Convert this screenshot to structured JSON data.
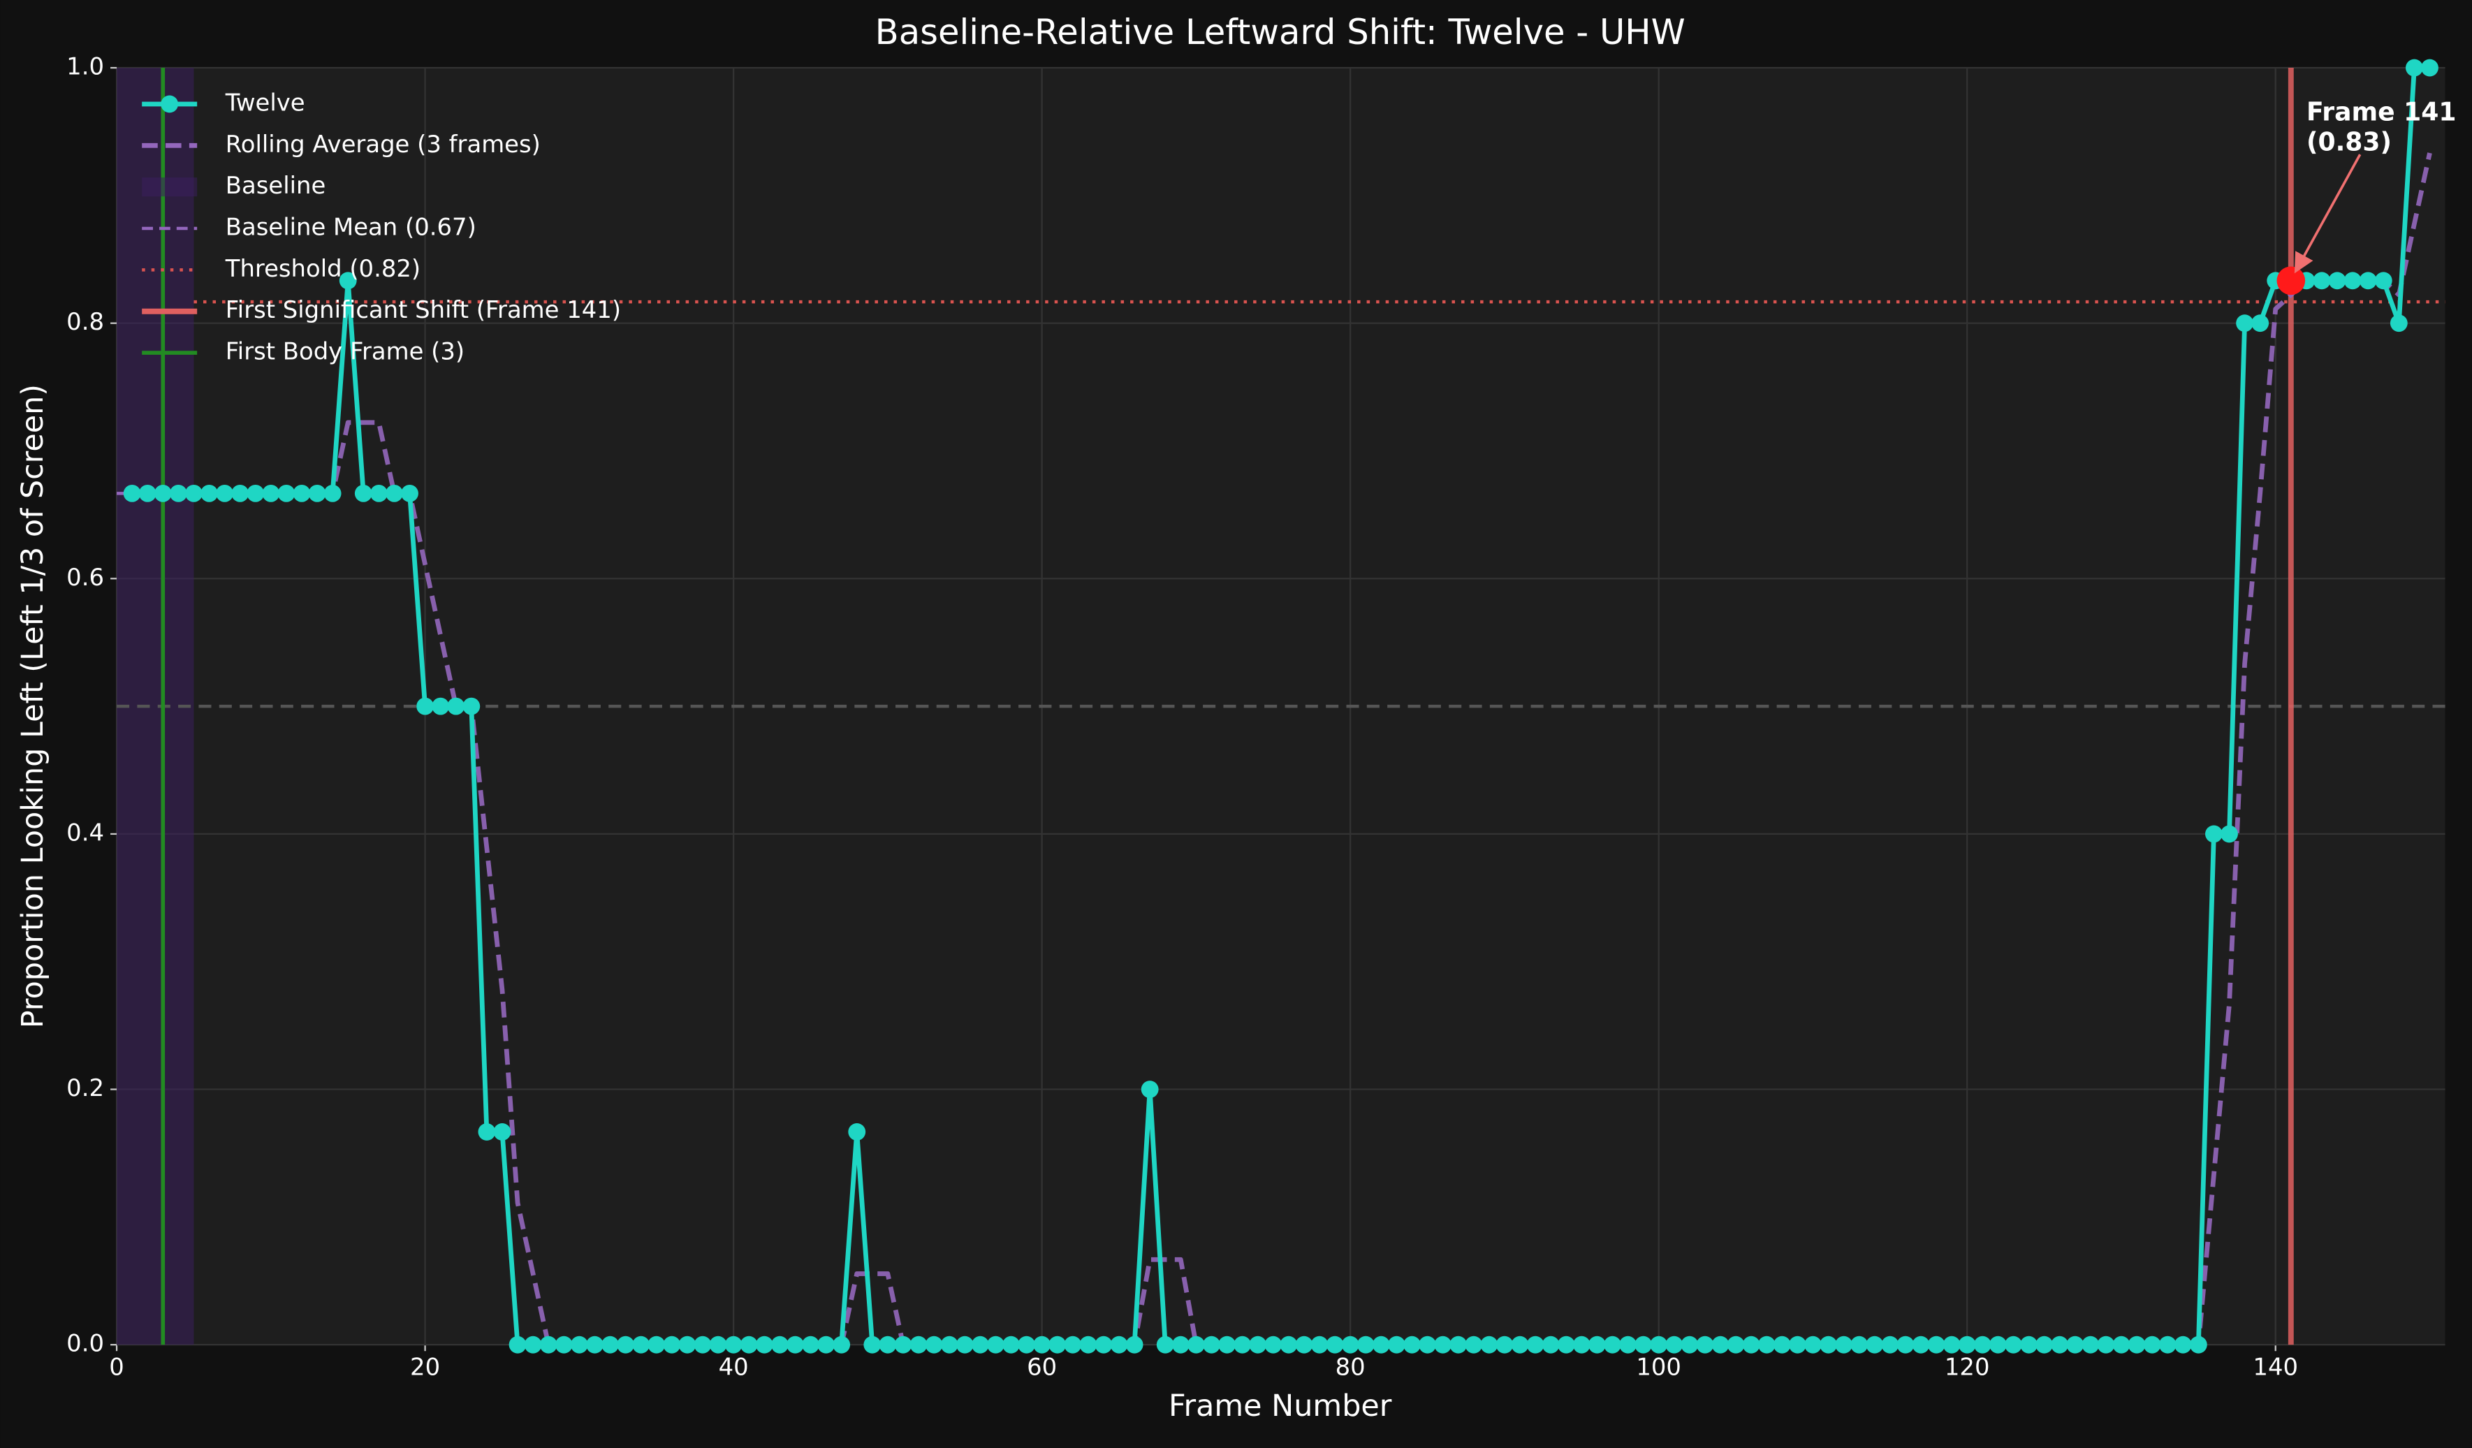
{
  "chart_data": {
    "type": "line",
    "title": "Baseline-Relative Leftward Shift: Twelve - UHW",
    "x_label": "Frame Number",
    "y_label": "Proportion Looking Left (Left 1/3 of Screen)",
    "xlim": [
      0,
      151
    ],
    "ylim": [
      0,
      1
    ],
    "xticks": [
      0,
      20,
      40,
      60,
      80,
      100,
      120,
      140
    ],
    "yticks": [
      {
        "value": 0,
        "label": "0.0"
      },
      0.2,
      0.4,
      0.6,
      0.8,
      {
        "value": 1,
        "label": "1.0"
      }
    ],
    "grid": true,
    "legend": "upper left",
    "x": [
      1,
      2,
      3,
      4,
      5,
      6,
      7,
      8,
      9,
      10,
      11,
      12,
      13,
      14,
      15,
      16,
      17,
      18,
      19,
      20,
      21,
      22,
      23,
      24,
      25,
      26,
      27,
      28,
      29,
      30,
      31,
      32,
      33,
      34,
      35,
      36,
      37,
      38,
      39,
      40,
      41,
      42,
      43,
      44,
      45,
      46,
      47,
      48,
      49,
      50,
      51,
      52,
      53,
      54,
      55,
      56,
      57,
      58,
      59,
      60,
      61,
      62,
      63,
      64,
      65,
      66,
      67,
      68,
      69,
      70,
      71,
      72,
      73,
      74,
      75,
      76,
      77,
      78,
      79,
      80,
      81,
      82,
      83,
      84,
      85,
      86,
      87,
      88,
      89,
      90,
      91,
      92,
      93,
      94,
      95,
      96,
      97,
      98,
      99,
      100,
      101,
      102,
      103,
      104,
      105,
      106,
      107,
      108,
      109,
      110,
      111,
      112,
      113,
      114,
      115,
      116,
      117,
      118,
      119,
      120,
      121,
      122,
      123,
      124,
      125,
      126,
      127,
      128,
      129,
      130,
      131,
      132,
      133,
      134,
      135,
      136,
      137,
      138,
      139,
      140,
      141,
      142,
      143,
      144,
      145,
      146,
      147,
      148,
      149,
      150
    ],
    "series": [
      {
        "name": "Twelve",
        "color": "#1fd6c4",
        "marker": true,
        "values": [
          0.6667,
          0.6667,
          0.6667,
          0.6667,
          0.6667,
          0.6667,
          0.6667,
          0.6667,
          0.6667,
          0.6667,
          0.6667,
          0.6667,
          0.6667,
          0.6667,
          0.8333,
          0.6667,
          0.6667,
          0.6667,
          0.6667,
          0.5,
          0.5,
          0.5,
          0.5,
          0.1667,
          0.1667,
          0,
          0,
          0,
          0,
          0,
          0,
          0,
          0,
          0,
          0,
          0,
          0,
          0,
          0,
          0,
          0,
          0,
          0,
          0,
          0,
          0,
          0,
          0.1667,
          0,
          0,
          0,
          0,
          0,
          0,
          0,
          0,
          0,
          0,
          0,
          0,
          0,
          0,
          0,
          0,
          0,
          0,
          0.2,
          0,
          0,
          0,
          0,
          0,
          0,
          0,
          0,
          0,
          0,
          0,
          0,
          0,
          0,
          0,
          0,
          0,
          0,
          0,
          0,
          0,
          0,
          0,
          0,
          0,
          0,
          0,
          0,
          0,
          0,
          0,
          0,
          0,
          0,
          0,
          0,
          0,
          0,
          0,
          0,
          0,
          0,
          0,
          0,
          0,
          0,
          0,
          0,
          0,
          0,
          0,
          0,
          0,
          0,
          0,
          0,
          0,
          0,
          0,
          0,
          0,
          0,
          0,
          0,
          0,
          0,
          0,
          0,
          0.4,
          0.4,
          0.8,
          0.8,
          0.8333,
          0.8333,
          0.8333,
          0.8333,
          0.8333,
          0.8333,
          0.8333,
          0.8333,
          0.8,
          1,
          1
        ]
      },
      {
        "name": "Rolling Average (3 frames)",
        "color": "#9467bd",
        "dash": true,
        "values": [
          0.6667,
          0.6667,
          0.6667,
          0.6667,
          0.6667,
          0.6667,
          0.6667,
          0.6667,
          0.6667,
          0.6667,
          0.6667,
          0.6667,
          0.6667,
          0.6667,
          0.7222,
          0.7222,
          0.7222,
          0.6667,
          0.6667,
          0.6111,
          0.5556,
          0.5,
          0.5,
          0.3889,
          0.2778,
          0.1111,
          0.0556,
          0,
          0,
          0,
          0,
          0,
          0,
          0,
          0,
          0,
          0,
          0,
          0,
          0,
          0,
          0,
          0,
          0,
          0,
          0,
          0,
          0.0556,
          0.0556,
          0.0556,
          0,
          0,
          0,
          0,
          0,
          0,
          0,
          0,
          0,
          0,
          0,
          0,
          0,
          0,
          0,
          0,
          0.0667,
          0.0667,
          0.0667,
          0,
          0,
          0,
          0,
          0,
          0,
          0,
          0,
          0,
          0,
          0,
          0,
          0,
          0,
          0,
          0,
          0,
          0,
          0,
          0,
          0,
          0,
          0,
          0,
          0,
          0,
          0,
          0,
          0,
          0,
          0,
          0,
          0,
          0,
          0,
          0,
          0,
          0,
          0,
          0,
          0,
          0,
          0,
          0,
          0,
          0,
          0,
          0,
          0,
          0,
          0,
          0,
          0,
          0,
          0,
          0,
          0,
          0,
          0,
          0,
          0,
          0,
          0,
          0,
          0,
          0,
          0.1333,
          0.2667,
          0.5333,
          0.6667,
          0.8111,
          0.8222,
          0.8333,
          0.8333,
          0.8333,
          0.8333,
          0.8333,
          0.8333,
          0.8222,
          0.8778,
          0.9333
        ]
      }
    ],
    "baseline": {
      "name": "Baseline",
      "color": "#3a1f5c",
      "span": [
        0,
        5
      ]
    },
    "baseline_mean": {
      "name": "Baseline Mean (0.67)",
      "color": "#9467bd",
      "value": 0.6667,
      "span": [
        0,
        5
      ]
    },
    "threshold": {
      "name": "Threshold (0.82)",
      "color": "#d9534f",
      "value": 0.8167,
      "span": [
        5,
        151
      ]
    },
    "first_shift": {
      "name": "First Significant Shift (Frame 141)",
      "color": "#e06060",
      "x": 141,
      "y": 0.8333,
      "marker_color": "#ff1a1a"
    },
    "first_body": {
      "name": "First Body Frame (3)",
      "color": "#228b22",
      "x": 3
    },
    "reference_line": {
      "value": 0.5,
      "color": "#555555"
    },
    "annotation": {
      "lines": [
        "Frame 141",
        "(0.83)"
      ],
      "color": "#f07070"
    }
  }
}
